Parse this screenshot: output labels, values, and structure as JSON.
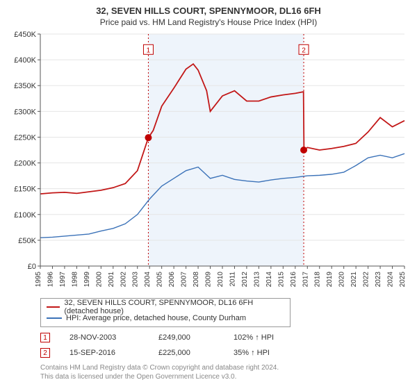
{
  "title": "32, SEVEN HILLS COURT, SPENNYMOOR, DL16 6FH",
  "subtitle": "Price paid vs. HM Land Registry's House Price Index (HPI)",
  "chart": {
    "type": "line",
    "background_color": "#ffffff",
    "plot_bg": "#ffffff",
    "grid_color": "#e5e5e5",
    "axis_color": "#555555",
    "tick_label_fontsize": 11,
    "xtics_fontsize": 10,
    "x": {
      "start_year": 1995,
      "end_year": 2025,
      "ticks": [
        1995,
        1996,
        1997,
        1998,
        1999,
        2000,
        2001,
        2002,
        2003,
        2004,
        2005,
        2006,
        2007,
        2008,
        2009,
        2010,
        2011,
        2012,
        2013,
        2014,
        2015,
        2016,
        2017,
        2018,
        2019,
        2020,
        2021,
        2022,
        2023,
        2024,
        2025
      ]
    },
    "y": {
      "min": 0,
      "max": 450000,
      "step": 50000,
      "prefix": "£",
      "suffix": "K",
      "ticks": [
        0,
        50000,
        100000,
        150000,
        200000,
        250000,
        300000,
        350000,
        400000,
        450000
      ]
    },
    "shade_band": {
      "from_year": 2003.9,
      "to_year": 2016.7,
      "line_color": "#c00000",
      "fill_color": "#eef4fb"
    },
    "markers": [
      {
        "n": "1",
        "year": 2003.9,
        "value": 249000,
        "color": "#c00000",
        "label_y": 420000
      },
      {
        "n": "2",
        "year": 2016.7,
        "value": 225000,
        "color": "#c00000",
        "label_y": 420000
      }
    ],
    "series": [
      {
        "name": "32, SEVEN HILLS COURT, SPENNYMOOR, DL16 6FH (detached house)",
        "color": "#c21717",
        "line_width": 1.8,
        "points": [
          [
            1995,
            140000
          ],
          [
            1996,
            142000
          ],
          [
            1997,
            143000
          ],
          [
            1998,
            141000
          ],
          [
            1999,
            144000
          ],
          [
            2000,
            147000
          ],
          [
            2001,
            152000
          ],
          [
            2002,
            160000
          ],
          [
            2003,
            185000
          ],
          [
            2003.9,
            249000
          ],
          [
            2004.3,
            263000
          ],
          [
            2005,
            310000
          ],
          [
            2006,
            345000
          ],
          [
            2007,
            382000
          ],
          [
            2007.6,
            392000
          ],
          [
            2008,
            380000
          ],
          [
            2008.7,
            340000
          ],
          [
            2009,
            300000
          ],
          [
            2010,
            330000
          ],
          [
            2011,
            340000
          ],
          [
            2012,
            320000
          ],
          [
            2013,
            320000
          ],
          [
            2014,
            328000
          ],
          [
            2015,
            332000
          ],
          [
            2016,
            335000
          ],
          [
            2016.68,
            338000
          ],
          [
            2016.72,
            225000
          ],
          [
            2017,
            230000
          ],
          [
            2018,
            225000
          ],
          [
            2019,
            228000
          ],
          [
            2020,
            232000
          ],
          [
            2021,
            238000
          ],
          [
            2022,
            260000
          ],
          [
            2023,
            288000
          ],
          [
            2024,
            270000
          ],
          [
            2025,
            282000
          ]
        ]
      },
      {
        "name": "HPI: Average price, detached house, County Durham",
        "color": "#3b72b8",
        "line_width": 1.4,
        "points": [
          [
            1995,
            55000
          ],
          [
            1996,
            56000
          ],
          [
            1997,
            58000
          ],
          [
            1998,
            60000
          ],
          [
            1999,
            62000
          ],
          [
            2000,
            68000
          ],
          [
            2001,
            73000
          ],
          [
            2002,
            82000
          ],
          [
            2003,
            100000
          ],
          [
            2004,
            130000
          ],
          [
            2005,
            155000
          ],
          [
            2006,
            170000
          ],
          [
            2007,
            185000
          ],
          [
            2008,
            192000
          ],
          [
            2009,
            170000
          ],
          [
            2010,
            176000
          ],
          [
            2011,
            168000
          ],
          [
            2012,
            165000
          ],
          [
            2013,
            163000
          ],
          [
            2014,
            167000
          ],
          [
            2015,
            170000
          ],
          [
            2016,
            172000
          ],
          [
            2017,
            175000
          ],
          [
            2018,
            176000
          ],
          [
            2019,
            178000
          ],
          [
            2020,
            182000
          ],
          [
            2021,
            195000
          ],
          [
            2022,
            210000
          ],
          [
            2023,
            215000
          ],
          [
            2024,
            210000
          ],
          [
            2025,
            218000
          ]
        ]
      }
    ]
  },
  "legend": {
    "rows": [
      {
        "color": "#c21717",
        "label": "32, SEVEN HILLS COURT, SPENNYMOOR, DL16 6FH (detached house)"
      },
      {
        "color": "#3b72b8",
        "label": "HPI: Average price, detached house, County Durham"
      }
    ]
  },
  "transactions": [
    {
      "n": "1",
      "color": "#c00000",
      "date": "28-NOV-2003",
      "price": "£249,000",
      "hpi": "102% ↑ HPI"
    },
    {
      "n": "2",
      "color": "#c00000",
      "date": "15-SEP-2016",
      "price": "£225,000",
      "hpi": "35% ↑ HPI"
    }
  ],
  "footer": {
    "line1": "Contains HM Land Registry data © Crown copyright and database right 2024.",
    "line2": "This data is licensed under the Open Government Licence v3.0."
  }
}
